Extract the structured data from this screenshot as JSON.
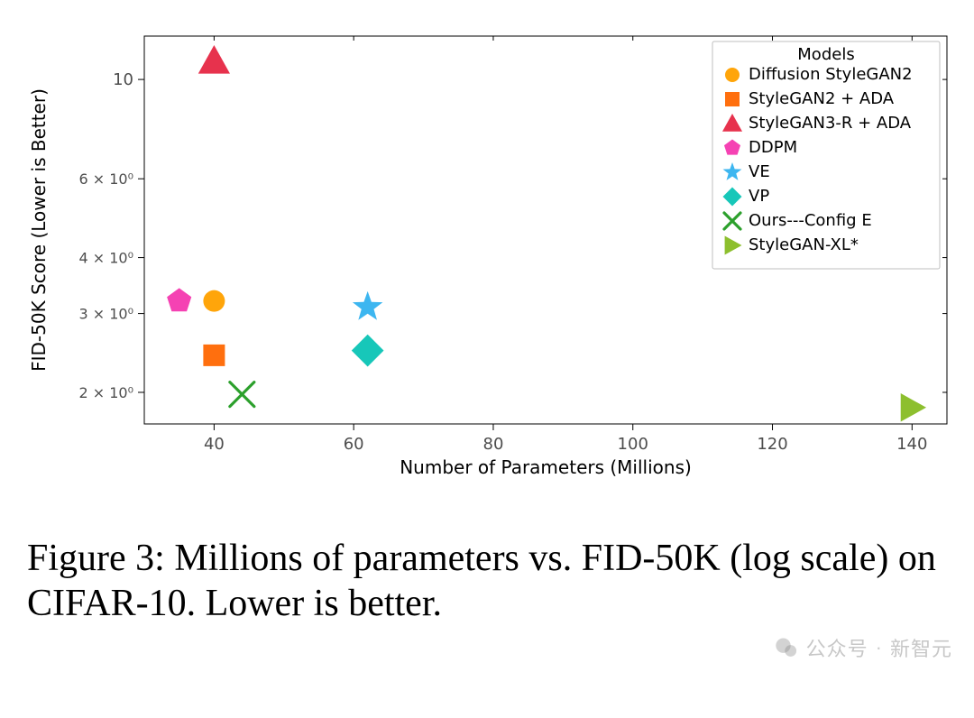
{
  "chart": {
    "type": "scatter",
    "xlabel": "Number of Parameters (Millions)",
    "ylabel": "FID-50K Score (Lower is Better)",
    "xlim": [
      30,
      145
    ],
    "xticks": [
      40,
      60,
      80,
      100,
      120,
      140
    ],
    "xtick_labels": [
      "40",
      "60",
      "80",
      "100",
      "120",
      "140"
    ],
    "yscale": "log",
    "ylim": [
      1.7,
      12.5
    ],
    "yticks": [
      2,
      3,
      4,
      6,
      10
    ],
    "ytick_labels": [
      "2 × 10⁰",
      "3 × 10⁰",
      "4 × 10⁰",
      "6 × 10⁰",
      "10"
    ],
    "label_fontsize_pt": 14,
    "tick_fontsize_pt": 12,
    "background_color": "#ffffff",
    "axis_color": "#000000",
    "tick_color": "#4d4d4d",
    "legend": {
      "title": "Models",
      "position": "upper right",
      "frame_color": "#bfbfbf",
      "frame_fill": "#ffffff"
    },
    "series": [
      {
        "name": "Diffusion StyleGAN2",
        "marker": "circle",
        "color": "#ffa50a",
        "size": 15,
        "x": 40,
        "y": 3.2
      },
      {
        "name": "StyleGAN2 + ADA",
        "marker": "square",
        "color": "#ff6f0e",
        "size": 15,
        "x": 40,
        "y": 2.42
      },
      {
        "name": "StyleGAN3-R + ADA",
        "marker": "triangle",
        "color": "#e7324d",
        "size": 16,
        "x": 40,
        "y": 11.0
      },
      {
        "name": "DDPM",
        "marker": "pentagon",
        "color": "#f542b3",
        "size": 15,
        "x": 35,
        "y": 3.2
      },
      {
        "name": "VE",
        "marker": "star",
        "color": "#3db6f0",
        "size": 16,
        "x": 62,
        "y": 3.1
      },
      {
        "name": "VP",
        "marker": "diamond",
        "color": "#17c7b9",
        "size": 17,
        "x": 62,
        "y": 2.48
      },
      {
        "name": "Ours---Config E",
        "marker": "x",
        "color": "#2ca02c",
        "size": 15,
        "x": 44,
        "y": 1.98
      },
      {
        "name": "StyleGAN-XL*",
        "marker": "rtri",
        "color": "#8dbf2e",
        "size": 15,
        "x": 140,
        "y": 1.85
      }
    ]
  },
  "caption": "Figure 3: Millions of parameters vs. FID-50K (log scale) on CIFAR-10. Lower is better.",
  "watermark": {
    "prefix": "公众号",
    "suffix": "新智元"
  }
}
